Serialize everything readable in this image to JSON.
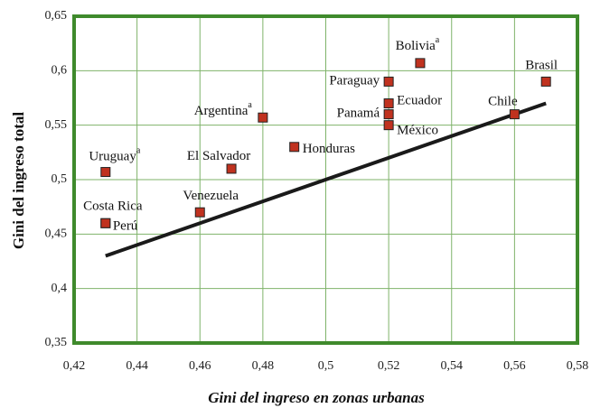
{
  "chart_data": {
    "type": "scatter",
    "xlabel": "Gini del ingreso en zonas urbanas",
    "ylabel": "Gini del ingreso total",
    "x": [
      0.43,
      0.43,
      0.43,
      0.46,
      0.47,
      0.48,
      0.49,
      0.52,
      0.52,
      0.52,
      0.52,
      0.53,
      0.56,
      0.57
    ],
    "values": [
      0.507,
      0.46,
      0.46,
      0.47,
      0.51,
      0.557,
      0.53,
      0.59,
      0.57,
      0.56,
      0.55,
      0.607,
      0.56,
      0.59
    ],
    "point_labels": [
      "Uruguay",
      "Costa Rica",
      "Perú",
      "Venezuela",
      "El Salvador",
      "Argentina",
      "Honduras",
      "Paraguay",
      "Ecuador",
      "Panamá",
      "México",
      "Bolivia",
      "Chile",
      "Brasil"
    ],
    "label_notes": [
      "a",
      null,
      null,
      null,
      null,
      "a",
      null,
      null,
      null,
      null,
      null,
      "a",
      null,
      null
    ],
    "color": "#c0321f",
    "trendline": {
      "x": [
        0.43,
        0.57
      ],
      "values": [
        0.43,
        0.57
      ],
      "color": "#1a1a1a"
    },
    "xlim": [
      0.42,
      0.58
    ],
    "ylim": [
      0.35,
      0.65
    ],
    "xticks": [
      {
        "value": 0.42,
        "label": "0,42"
      },
      {
        "value": 0.44,
        "label": "0,44"
      },
      {
        "value": 0.46,
        "label": "0,46"
      },
      {
        "value": 0.48,
        "label": "0,48"
      },
      {
        "value": 0.5,
        "label": "0,5"
      },
      {
        "value": 0.52,
        "label": "0,52"
      },
      {
        "value": 0.54,
        "label": "0,54"
      },
      {
        "value": 0.56,
        "label": "0,56"
      },
      {
        "value": 0.58,
        "label": "0,58"
      }
    ],
    "yticks": [
      {
        "value": 0.35,
        "label": "0,35"
      },
      {
        "value": 0.4,
        "label": "0,4"
      },
      {
        "value": 0.45,
        "label": "0,45"
      },
      {
        "value": 0.5,
        "label": "0,5"
      },
      {
        "value": 0.55,
        "label": "0,55"
      },
      {
        "value": 0.6,
        "label": "0,6"
      },
      {
        "value": 0.65,
        "label": "0,65"
      }
    ],
    "grid": true
  }
}
